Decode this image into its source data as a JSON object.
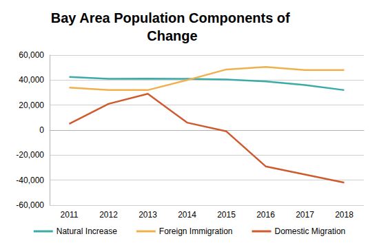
{
  "chart_data": {
    "type": "line",
    "title": "Bay Area Population Components of Change",
    "categories": [
      "2011",
      "2012",
      "2013",
      "2014",
      "2015",
      "2016",
      "2017",
      "2018"
    ],
    "series": [
      {
        "name": "Natural Increase",
        "color": "#3aaba6",
        "values": [
          42500,
          41000,
          41200,
          41000,
          40500,
          39000,
          36000,
          32000
        ]
      },
      {
        "name": "Foreign Immigration",
        "color": "#f0b04c",
        "values": [
          34000,
          32000,
          32000,
          40000,
          48500,
          50500,
          48000,
          48000
        ]
      },
      {
        "name": "Domestic Migration",
        "color": "#cf5a2e",
        "values": [
          5000,
          21000,
          29000,
          6000,
          -1000,
          -29000,
          -35500,
          -42000
        ]
      }
    ],
    "ylim": [
      -60000,
      60000
    ],
    "yticks": [
      {
        "value": -60000,
        "label": "-60,000"
      },
      {
        "value": -40000,
        "label": "-40,000"
      },
      {
        "value": -20000,
        "label": "-20,000"
      },
      0,
      {
        "value": 20000,
        "label": "20,000"
      },
      {
        "value": 40000,
        "label": "40,000"
      },
      {
        "value": 60000,
        "label": "60,000"
      }
    ],
    "grid": true,
    "legend": "bottom"
  }
}
